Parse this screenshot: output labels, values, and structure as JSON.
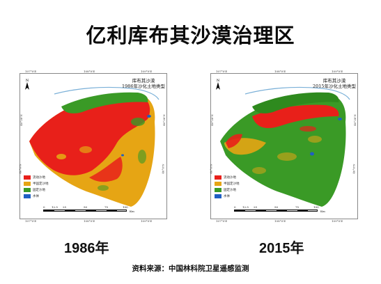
{
  "title": "亿利库布其沙漠治理区",
  "source": "资料来源：中国林科院卫星遥感监测",
  "colors": {
    "flowing": "#e8201a",
    "semi_fixed": "#e6a514",
    "fixed": "#3a9a26",
    "water": "#1f5fc4",
    "river": "#7ab0d8"
  },
  "maps": [
    {
      "year": "1986年",
      "map_title_line1": "库布其沙漠",
      "map_title_line2": "1986年沙化土地类型",
      "coords": {
        "top_left": "107°0'E",
        "top_mid": "108°0'E",
        "top_right": "109°0'E",
        "bottom_left": "107°0'E",
        "bottom_mid": "108°0'E",
        "bottom_right": "109°0'E",
        "left_top": "40°30'N",
        "left_mid": "40°0'N",
        "right_top": "40°30'N",
        "right_mid": "40°0'N"
      }
    },
    {
      "year": "2015年",
      "map_title_line1": "库布其沙漠",
      "map_title_line2": "2015年沙化土地类型",
      "coords": {
        "top_left": "107°0'E",
        "top_mid": "108°0'E",
        "top_right": "109°0'E",
        "bottom_left": "107°0'E",
        "bottom_mid": "108°0'E",
        "bottom_right": "109°0'E",
        "left_top": "40°30'N",
        "left_mid": "40°0'N",
        "right_top": "40°30'N",
        "right_mid": "40°0'N"
      }
    }
  ],
  "legend": [
    {
      "label": "流动沙地",
      "color_key": "flowing"
    },
    {
      "label": "半固定沙地",
      "color_key": "semi_fixed"
    },
    {
      "label": "固定沙地",
      "color_key": "fixed"
    },
    {
      "label": "水体",
      "color_key": "water"
    }
  ],
  "scale": {
    "ticks": [
      "0",
      "12.5",
      "25",
      "50",
      "75",
      "100"
    ],
    "unit": "Km"
  },
  "north_label": "N"
}
